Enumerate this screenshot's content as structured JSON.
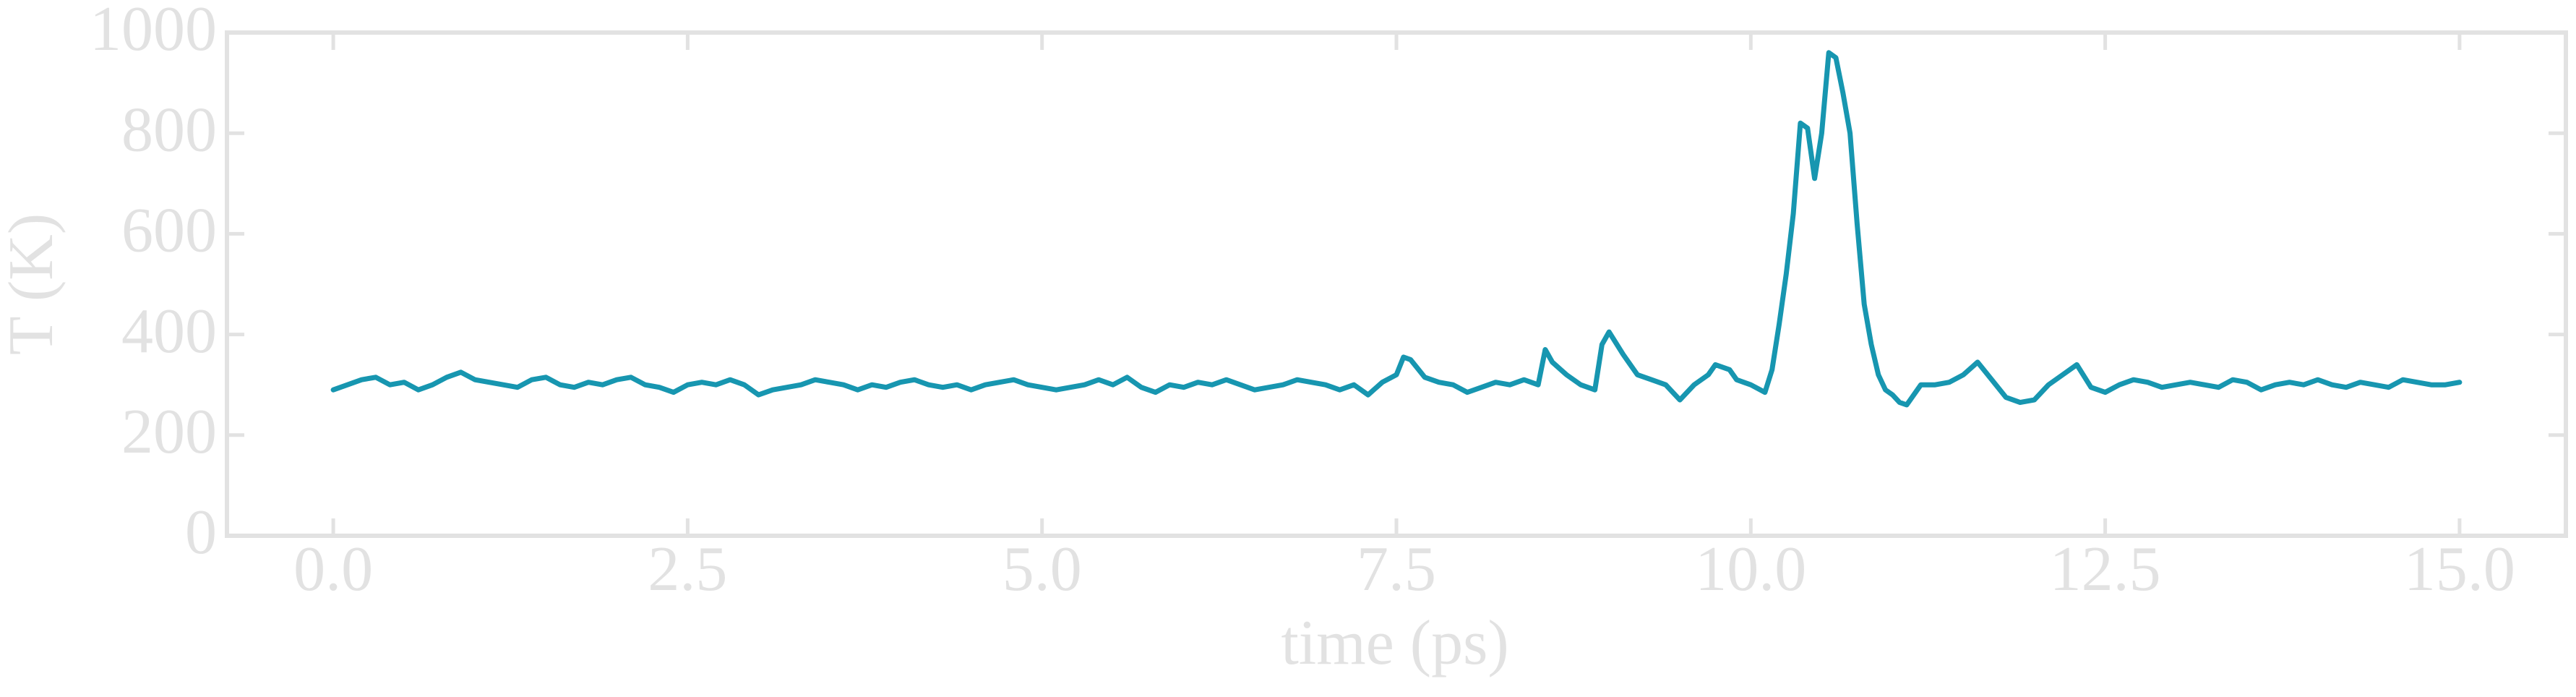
{
  "chart_data": {
    "type": "line",
    "xlabel": "time (ps)",
    "ylabel": "T (K)",
    "color": "#1796b0",
    "xlim": [
      -0.75,
      15.75
    ],
    "ylim": [
      0,
      1000
    ],
    "xticks": [
      {
        "value": 0,
        "label": "0.0"
      },
      2.5,
      {
        "value": 5,
        "label": "5.0"
      },
      7.5,
      {
        "value": 10,
        "label": "10.0"
      },
      12.5,
      {
        "value": 15,
        "label": "15.0"
      }
    ],
    "yticks": [
      0,
      200,
      400,
      600,
      800,
      1000
    ],
    "x": [
      0.0,
      0.1,
      0.2,
      0.3,
      0.4,
      0.5,
      0.6,
      0.7,
      0.8,
      0.9,
      1.0,
      1.1,
      1.2,
      1.3,
      1.4,
      1.5,
      1.6,
      1.7,
      1.8,
      1.9,
      2.0,
      2.1,
      2.2,
      2.3,
      2.4,
      2.5,
      2.6,
      2.7,
      2.8,
      2.9,
      3.0,
      3.1,
      3.2,
      3.3,
      3.4,
      3.5,
      3.6,
      3.7,
      3.8,
      3.9,
      4.0,
      4.1,
      4.2,
      4.3,
      4.4,
      4.5,
      4.6,
      4.7,
      4.8,
      4.9,
      5.0,
      5.1,
      5.2,
      5.3,
      5.4,
      5.5,
      5.6,
      5.7,
      5.8,
      5.9,
      6.0,
      6.1,
      6.2,
      6.3,
      6.4,
      6.5,
      6.6,
      6.7,
      6.8,
      6.9,
      7.0,
      7.1,
      7.2,
      7.3,
      7.4,
      7.5,
      7.55,
      7.6,
      7.7,
      7.8,
      7.9,
      8.0,
      8.1,
      8.2,
      8.3,
      8.4,
      8.5,
      8.55,
      8.6,
      8.7,
      8.8,
      8.9,
      8.95,
      9.0,
      9.1,
      9.2,
      9.3,
      9.4,
      9.5,
      9.6,
      9.7,
      9.75,
      9.85,
      9.9,
      10.0,
      10.1,
      10.15,
      10.2,
      10.25,
      10.3,
      10.35,
      10.4,
      10.45,
      10.5,
      10.55,
      10.6,
      10.65,
      10.7,
      10.75,
      10.8,
      10.85,
      10.9,
      10.95,
      11.0,
      11.05,
      11.1,
      11.2,
      11.3,
      11.4,
      11.5,
      11.6,
      11.7,
      11.8,
      11.9,
      12.0,
      12.1,
      12.2,
      12.3,
      12.4,
      12.5,
      12.6,
      12.7,
      12.8,
      12.9,
      13.0,
      13.1,
      13.2,
      13.3,
      13.4,
      13.5,
      13.6,
      13.7,
      13.8,
      13.9,
      14.0,
      14.1,
      14.2,
      14.3,
      14.4,
      14.5,
      14.6,
      14.7,
      14.8,
      14.9,
      15.0
    ],
    "values": [
      290,
      300,
      310,
      315,
      300,
      305,
      290,
      300,
      315,
      325,
      310,
      305,
      300,
      295,
      310,
      315,
      300,
      295,
      305,
      300,
      310,
      315,
      300,
      295,
      285,
      300,
      305,
      300,
      310,
      300,
      280,
      290,
      295,
      300,
      310,
      305,
      300,
      290,
      300,
      295,
      305,
      310,
      300,
      295,
      300,
      290,
      300,
      305,
      310,
      300,
      295,
      290,
      295,
      300,
      310,
      300,
      315,
      295,
      285,
      300,
      295,
      305,
      300,
      310,
      300,
      290,
      295,
      300,
      310,
      305,
      300,
      290,
      300,
      280,
      305,
      320,
      355,
      350,
      315,
      305,
      300,
      285,
      295,
      305,
      300,
      310,
      300,
      370,
      345,
      320,
      300,
      290,
      380,
      405,
      360,
      320,
      310,
      300,
      270,
      300,
      320,
      340,
      330,
      310,
      300,
      285,
      330,
      420,
      520,
      640,
      820,
      810,
      710,
      800,
      960,
      950,
      880,
      800,
      620,
      460,
      380,
      320,
      290,
      280,
      265,
      260,
      300,
      300,
      305,
      320,
      345,
      310,
      275,
      265,
      270,
      300,
      320,
      340,
      295,
      285,
      300,
      310,
      305,
      295,
      300,
      305,
      300,
      295,
      310,
      305,
      290,
      300,
      305,
      300,
      310,
      300,
      295,
      305,
      300,
      295,
      310,
      305,
      300,
      300,
      305
    ]
  }
}
